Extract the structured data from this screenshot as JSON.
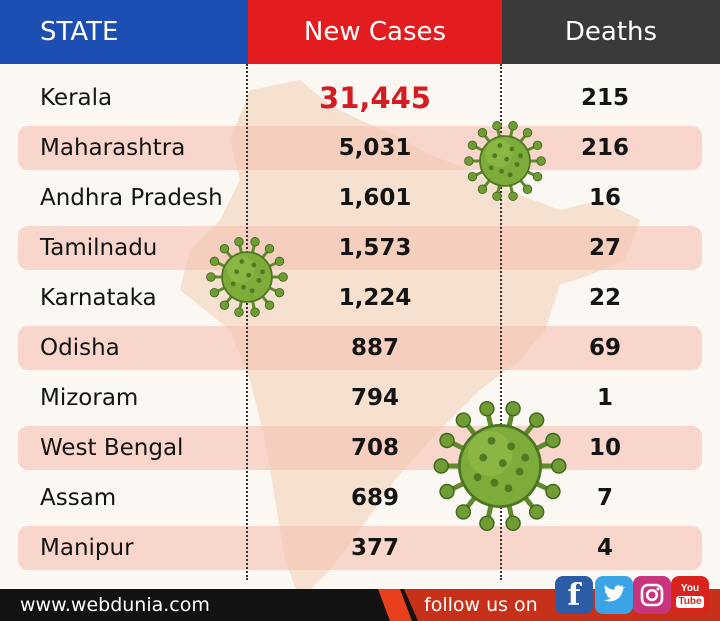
{
  "header": {
    "state_label": "STATE",
    "cases_label": "New Cases",
    "deaths_label": "Deaths"
  },
  "rows": [
    {
      "state": "Kerala",
      "cases": "31,445",
      "deaths": "215"
    },
    {
      "state": "Maharashtra",
      "cases": "5,031",
      "deaths": "216"
    },
    {
      "state": "Andhra Pradesh",
      "cases": "1,601",
      "deaths": "16"
    },
    {
      "state": "Tamilnadu",
      "cases": "1,573",
      "deaths": "27"
    },
    {
      "state": "Karnataka",
      "cases": "1,224",
      "deaths": "22"
    },
    {
      "state": "Odisha",
      "cases": "887",
      "deaths": "69"
    },
    {
      "state": "Mizoram",
      "cases": "794",
      "deaths": "1"
    },
    {
      "state": "West Bengal",
      "cases": "708",
      "deaths": "10"
    },
    {
      "state": "Assam",
      "cases": "689",
      "deaths": "7"
    },
    {
      "state": "Manipur",
      "cases": "377",
      "deaths": "4"
    }
  ],
  "footer": {
    "website": "www.webdunia.com",
    "follow_text": "follow us on",
    "youtube_you": "You",
    "youtube_tube": "Tube"
  },
  "colors": {
    "state_header": "#1d4fb3",
    "cases_header": "#e21c1f",
    "deaths_header": "#3a3a3a",
    "highlight_value": "#d41d22",
    "row_stripe": "#f6c1b2",
    "footer_bg": "#121212",
    "footer_accent": "#e8401c"
  },
  "icons": [
    "virus-icon",
    "facebook-icon",
    "twitter-icon",
    "instagram-icon",
    "youtube-icon"
  ]
}
